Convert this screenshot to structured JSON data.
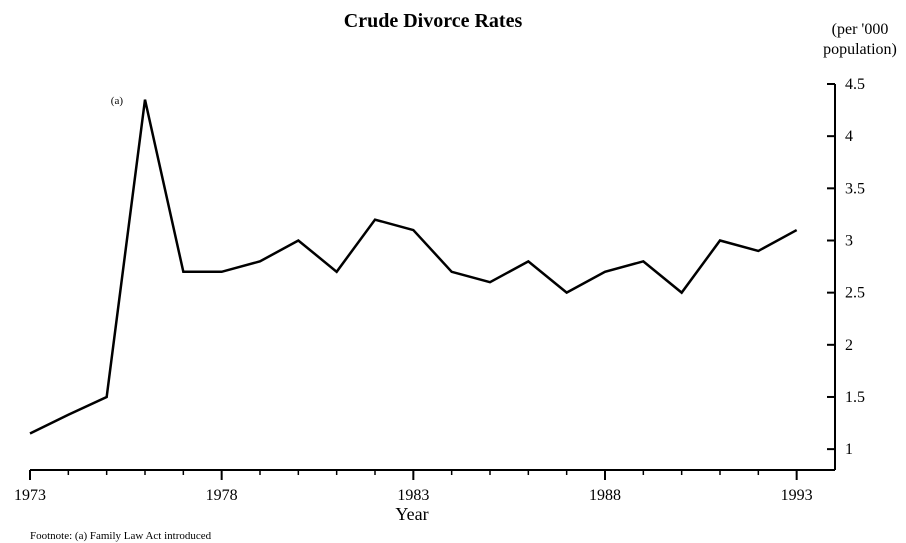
{
  "chart_data": {
    "type": "line",
    "title": "Crude Divorce Rates",
    "ylabel": [
      "(per '000",
      "population)"
    ],
    "xlabel": "Year",
    "x": [
      1973,
      1974,
      1975,
      1976,
      1977,
      1978,
      1979,
      1980,
      1981,
      1982,
      1983,
      1984,
      1985,
      1986,
      1987,
      1988,
      1989,
      1990,
      1991,
      1992,
      1993
    ],
    "series": [
      {
        "name": "Crude divorce rate",
        "color": "#000000",
        "values": [
          1.15,
          1.33,
          1.5,
          4.35,
          2.7,
          2.7,
          2.8,
          3.0,
          2.7,
          3.2,
          3.1,
          2.7,
          2.6,
          2.8,
          2.5,
          2.7,
          2.8,
          2.5,
          3.0,
          2.9,
          3.1
        ]
      }
    ],
    "xlim": [
      1973,
      1994
    ],
    "xticks": [
      1973,
      1978,
      1983,
      1988,
      1993
    ],
    "ylim": [
      0.8,
      4.5
    ],
    "yticks": [
      1,
      1.5,
      2,
      2.5,
      3,
      3.5,
      4,
      4.5
    ],
    "annotations": [
      {
        "text": "(a)",
        "x": 1976
      }
    ],
    "footnote": "Footnote: (a) Family Law Act introduced"
  }
}
